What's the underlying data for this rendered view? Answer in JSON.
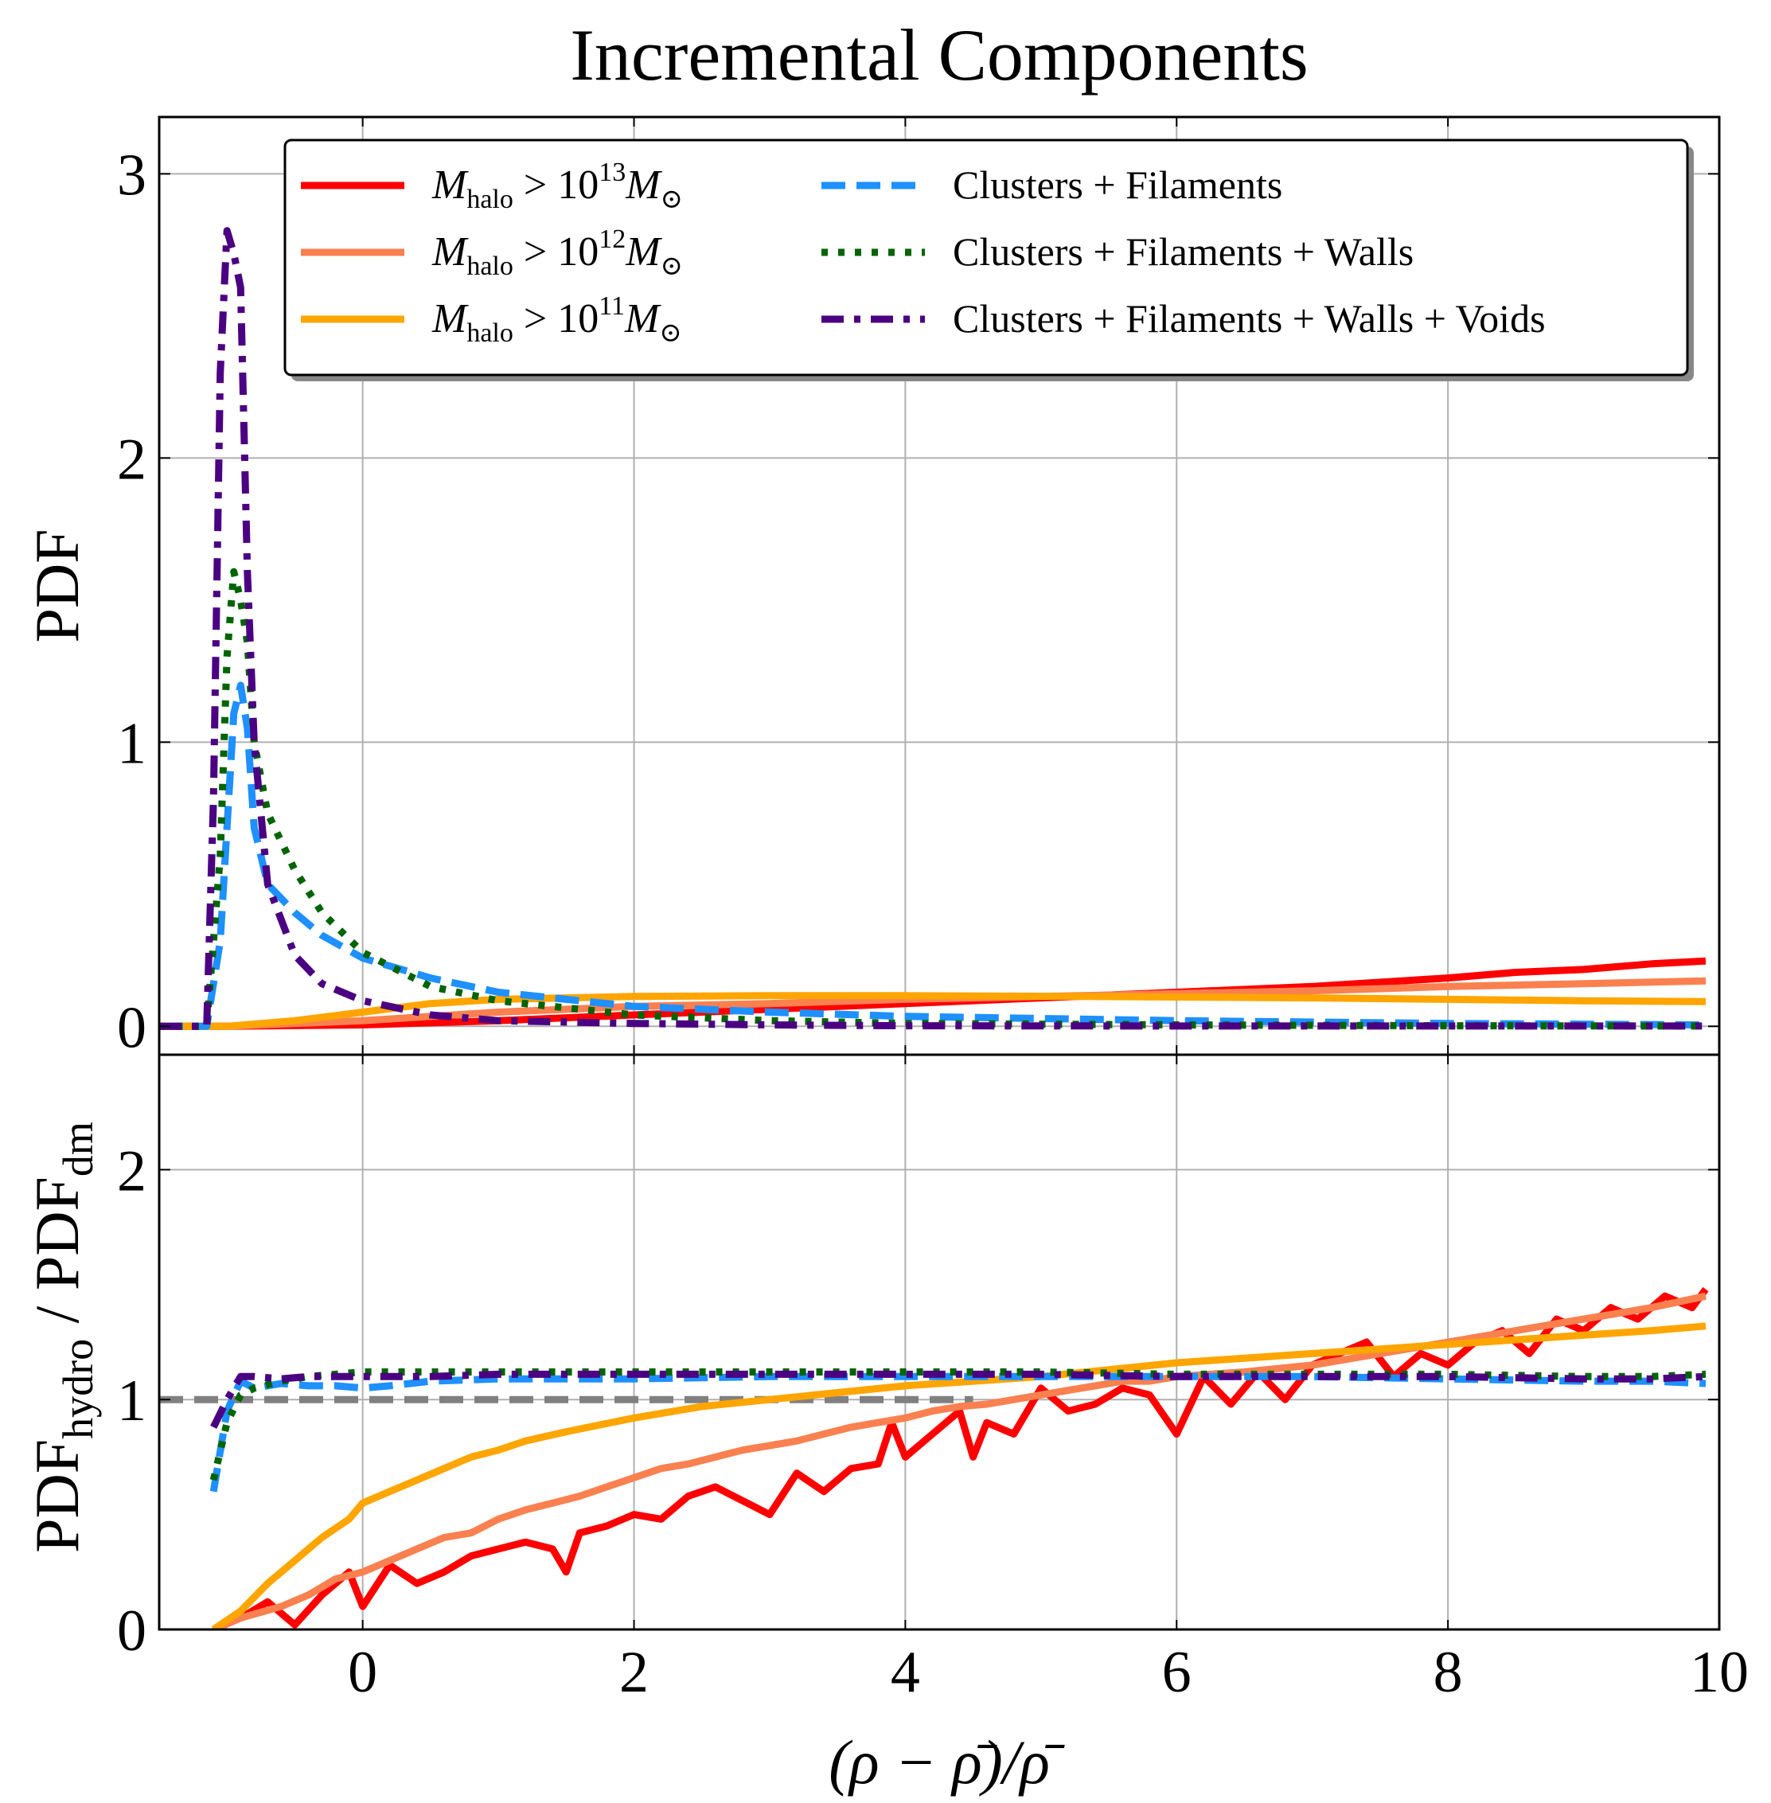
{
  "chart_data": {
    "type": "line",
    "title": "Incremental Components",
    "xlabel": "(ρ − ρ̄)/ρ̄",
    "xlim": [
      -1.5,
      10
    ],
    "x_ticks": [
      0,
      2,
      4,
      6,
      8,
      10
    ],
    "grid": true,
    "legend_placement": "top-right",
    "legend": [
      {
        "mass": "M",
        "sub": "halo",
        "gt": " > 10",
        "exp": "13",
        "mass2": "M",
        "sun": "⊙",
        "color": "#ff0000",
        "dash": "solid"
      },
      {
        "mass": "M",
        "sub": "halo",
        "gt": " > 10",
        "exp": "12",
        "mass2": "M",
        "sun": "⊙",
        "color": "#fa8050",
        "dash": "solid"
      },
      {
        "mass": "M",
        "sub": "halo",
        "gt": " > 10",
        "exp": "11",
        "mass2": "M",
        "sun": "⊙",
        "color": "#ffa500",
        "dash": "solid"
      },
      {
        "label": "Clusters + Filaments",
        "color": "#1e90ff",
        "dash": "dashed"
      },
      {
        "label": "Clusters + Filaments + Walls",
        "color": "#006400",
        "dash": "dotted"
      },
      {
        "label": "Clusters + Filaments + Walls + Voids",
        "color": "#4b0082",
        "dash": "dashdot"
      }
    ],
    "panels": [
      {
        "ylabel": "PDF",
        "ylim": [
          -0.1,
          3.2
        ],
        "y_ticks": [
          0,
          1,
          2,
          3
        ],
        "series": [
          {
            "color": "#ff0000",
            "x": [
              -1.5,
              -1,
              0,
              1,
              2,
              3,
              4,
              5,
              6,
              7,
              8,
              8.5,
              9,
              9.5,
              9.9
            ],
            "y": [
              0,
              0,
              0.005,
              0.02,
              0.04,
              0.06,
              0.08,
              0.1,
              0.12,
              0.14,
              0.17,
              0.19,
              0.2,
              0.22,
              0.23
            ]
          },
          {
            "color": "#fa8050",
            "x": [
              -1.5,
              -1,
              0,
              1,
              2,
              3,
              4,
              5,
              6,
              7,
              8,
              9,
              9.9
            ],
            "y": [
              0,
              0,
              0.02,
              0.05,
              0.07,
              0.08,
              0.095,
              0.105,
              0.115,
              0.125,
              0.14,
              0.15,
              0.16
            ]
          },
          {
            "color": "#ffa500",
            "x": [
              -1.5,
              -1,
              -0.5,
              0,
              0.5,
              1,
              2,
              3,
              4,
              5,
              6,
              7,
              8,
              9,
              9.9
            ],
            "y": [
              0,
              0,
              0.02,
              0.05,
              0.08,
              0.095,
              0.105,
              0.108,
              0.108,
              0.106,
              0.103,
              0.1,
              0.095,
              0.09,
              0.087
            ]
          },
          {
            "color": "#1e90ff",
            "x": [
              -1.5,
              -1.15,
              -1.05,
              -0.95,
              -0.9,
              -0.85,
              -0.8,
              -0.7,
              -0.5,
              -0.3,
              0,
              0.5,
              1,
              2,
              3,
              4,
              6,
              8,
              9.9
            ],
            "y": [
              0,
              0,
              0.3,
              1.1,
              1.2,
              1.05,
              0.7,
              0.5,
              0.4,
              0.32,
              0.24,
              0.17,
              0.12,
              0.07,
              0.05,
              0.035,
              0.02,
              0.01,
              0.005
            ]
          },
          {
            "color": "#006400",
            "x": [
              -1.5,
              -1.15,
              -1.05,
              -1,
              -0.95,
              -0.9,
              -0.85,
              -0.8,
              -0.7,
              -0.5,
              -0.3,
              0,
              0.5,
              1,
              2,
              3,
              4,
              6,
              8,
              9.9
            ],
            "y": [
              0,
              0,
              0.6,
              1.3,
              1.6,
              1.5,
              1.35,
              1.0,
              0.75,
              0.55,
              0.4,
              0.26,
              0.14,
              0.09,
              0.04,
              0.02,
              0.01,
              0.005,
              0.002,
              0.001
            ]
          },
          {
            "color": "#4b0082",
            "x": [
              -1.5,
              -1.15,
              -1.1,
              -1.05,
              -1,
              -0.95,
              -0.9,
              -0.85,
              -0.8,
              -0.7,
              -0.5,
              -0.3,
              0,
              0.5,
              1,
              2,
              3,
              4,
              6,
              8,
              9.9
            ],
            "y": [
              0,
              0,
              0.8,
              2.3,
              2.8,
              2.72,
              2.6,
              1.6,
              1.0,
              0.5,
              0.25,
              0.15,
              0.09,
              0.04,
              0.02,
              0.01,
              0.005,
              0.002,
              0.001,
              0.001,
              0.001
            ]
          }
        ]
      },
      {
        "ylabel_main": "PDF",
        "ylabel_sub1": "hydro",
        "ylabel_div": " / PDF",
        "ylabel_sub2": "dm",
        "ylim": [
          0,
          2.5
        ],
        "y_ticks": [
          0,
          1,
          2
        ],
        "reference": {
          "y": 1.0,
          "x0": -1.5,
          "x1": 4.5,
          "color": "#808080"
        },
        "series": [
          {
            "color": "#ff0000",
            "x": [
              -1.1,
              -0.9,
              -0.7,
              -0.5,
              -0.3,
              -0.1,
              0,
              0.2,
              0.4,
              0.6,
              0.8,
              1,
              1.2,
              1.4,
              1.5,
              1.6,
              1.8,
              2,
              2.2,
              2.4,
              2.6,
              2.8,
              3,
              3.2,
              3.4,
              3.6,
              3.8,
              3.9,
              4,
              4.2,
              4.4,
              4.5,
              4.6,
              4.8,
              5,
              5.2,
              5.4,
              5.6,
              5.8,
              6,
              6.2,
              6.4,
              6.6,
              6.8,
              7,
              7.2,
              7.4,
              7.6,
              7.8,
              8,
              8.2,
              8.4,
              8.6,
              8.8,
              9,
              9.2,
              9.4,
              9.6,
              9.8,
              9.9
            ],
            "y": [
              0,
              0.05,
              0.12,
              0.02,
              0.15,
              0.25,
              0.1,
              0.28,
              0.2,
              0.25,
              0.32,
              0.35,
              0.38,
              0.35,
              0.25,
              0.42,
              0.45,
              0.5,
              0.48,
              0.58,
              0.62,
              0.56,
              0.5,
              0.68,
              0.6,
              0.7,
              0.72,
              0.9,
              0.75,
              0.85,
              0.95,
              0.75,
              0.9,
              0.85,
              1.05,
              0.95,
              0.98,
              1.05,
              1.02,
              0.85,
              1.1,
              0.98,
              1.12,
              1.0,
              1.15,
              1.2,
              1.25,
              1.1,
              1.2,
              1.15,
              1.25,
              1.3,
              1.2,
              1.35,
              1.3,
              1.4,
              1.35,
              1.45,
              1.4,
              1.48
            ]
          },
          {
            "color": "#fa8050",
            "x": [
              -1.1,
              -0.9,
              -0.6,
              -0.4,
              -0.2,
              0,
              0.2,
              0.4,
              0.6,
              0.8,
              1,
              1.2,
              1.4,
              1.6,
              1.8,
              2,
              2.2,
              2.4,
              2.6,
              2.8,
              3,
              3.2,
              3.4,
              3.6,
              3.8,
              4,
              4.2,
              4.4,
              4.6,
              4.8,
              5,
              5.2,
              5.4,
              5.6,
              5.8,
              6,
              6.5,
              7,
              7.5,
              8,
              8.5,
              9,
              9.5,
              9.9
            ],
            "y": [
              0,
              0.05,
              0.1,
              0.15,
              0.22,
              0.25,
              0.3,
              0.35,
              0.4,
              0.42,
              0.48,
              0.52,
              0.55,
              0.58,
              0.62,
              0.66,
              0.7,
              0.72,
              0.75,
              0.78,
              0.8,
              0.82,
              0.85,
              0.88,
              0.9,
              0.92,
              0.95,
              0.97,
              0.98,
              1.0,
              1.02,
              1.04,
              1.06,
              1.08,
              1.08,
              1.1,
              1.12,
              1.15,
              1.2,
              1.25,
              1.3,
              1.35,
              1.4,
              1.45
            ]
          },
          {
            "color": "#ffa500",
            "x": [
              -1.1,
              -0.9,
              -0.7,
              -0.5,
              -0.3,
              -0.1,
              0,
              0.2,
              0.4,
              0.6,
              0.8,
              1,
              1.2,
              1.5,
              2,
              2.5,
              3,
              3.5,
              4,
              4.5,
              5,
              5.5,
              6,
              6.5,
              7,
              7.5,
              8,
              8.5,
              9,
              9.5,
              9.9
            ],
            "y": [
              0,
              0.08,
              0.2,
              0.3,
              0.4,
              0.48,
              0.55,
              0.6,
              0.65,
              0.7,
              0.75,
              0.78,
              0.82,
              0.86,
              0.92,
              0.97,
              1.0,
              1.03,
              1.06,
              1.08,
              1.1,
              1.13,
              1.16,
              1.18,
              1.2,
              1.22,
              1.24,
              1.26,
              1.28,
              1.3,
              1.32
            ]
          },
          {
            "color": "#1e90ff",
            "x": [
              -1.1,
              -1.0,
              -0.9,
              -0.8,
              -0.6,
              -0.4,
              -0.2,
              0,
              0.2,
              0.5,
              1,
              2,
              3,
              4,
              5,
              6,
              7,
              8,
              9,
              9.5,
              9.9
            ],
            "y": [
              0.6,
              0.95,
              1.08,
              1.05,
              1.07,
              1.06,
              1.06,
              1.05,
              1.06,
              1.08,
              1.09,
              1.09,
              1.1,
              1.1,
              1.1,
              1.1,
              1.1,
              1.09,
              1.08,
              1.08,
              1.07
            ]
          },
          {
            "color": "#006400",
            "x": [
              -1.1,
              -1.0,
              -0.9,
              -0.8,
              -0.6,
              -0.4,
              -0.2,
              0,
              0.2,
              0.5,
              1,
              2,
              3,
              4,
              5,
              6,
              7,
              8,
              9,
              9.5,
              9.9
            ],
            "y": [
              0.65,
              0.9,
              1.02,
              1.05,
              1.08,
              1.1,
              1.11,
              1.12,
              1.12,
              1.12,
              1.12,
              1.12,
              1.12,
              1.12,
              1.12,
              1.11,
              1.11,
              1.11,
              1.1,
              1.1,
              1.11
            ]
          },
          {
            "color": "#4b0082",
            "x": [
              -1.1,
              -1.0,
              -0.9,
              -0.8,
              -0.6,
              -0.4,
              -0.2,
              0,
              0.2,
              0.5,
              1,
              2,
              3,
              4,
              5,
              6,
              7,
              8,
              9,
              9.5,
              9.9
            ],
            "y": [
              0.88,
              1.0,
              1.1,
              1.1,
              1.09,
              1.1,
              1.1,
              1.1,
              1.1,
              1.1,
              1.11,
              1.11,
              1.11,
              1.11,
              1.11,
              1.1,
              1.1,
              1.1,
              1.09,
              1.09,
              1.1
            ]
          }
        ]
      }
    ]
  }
}
